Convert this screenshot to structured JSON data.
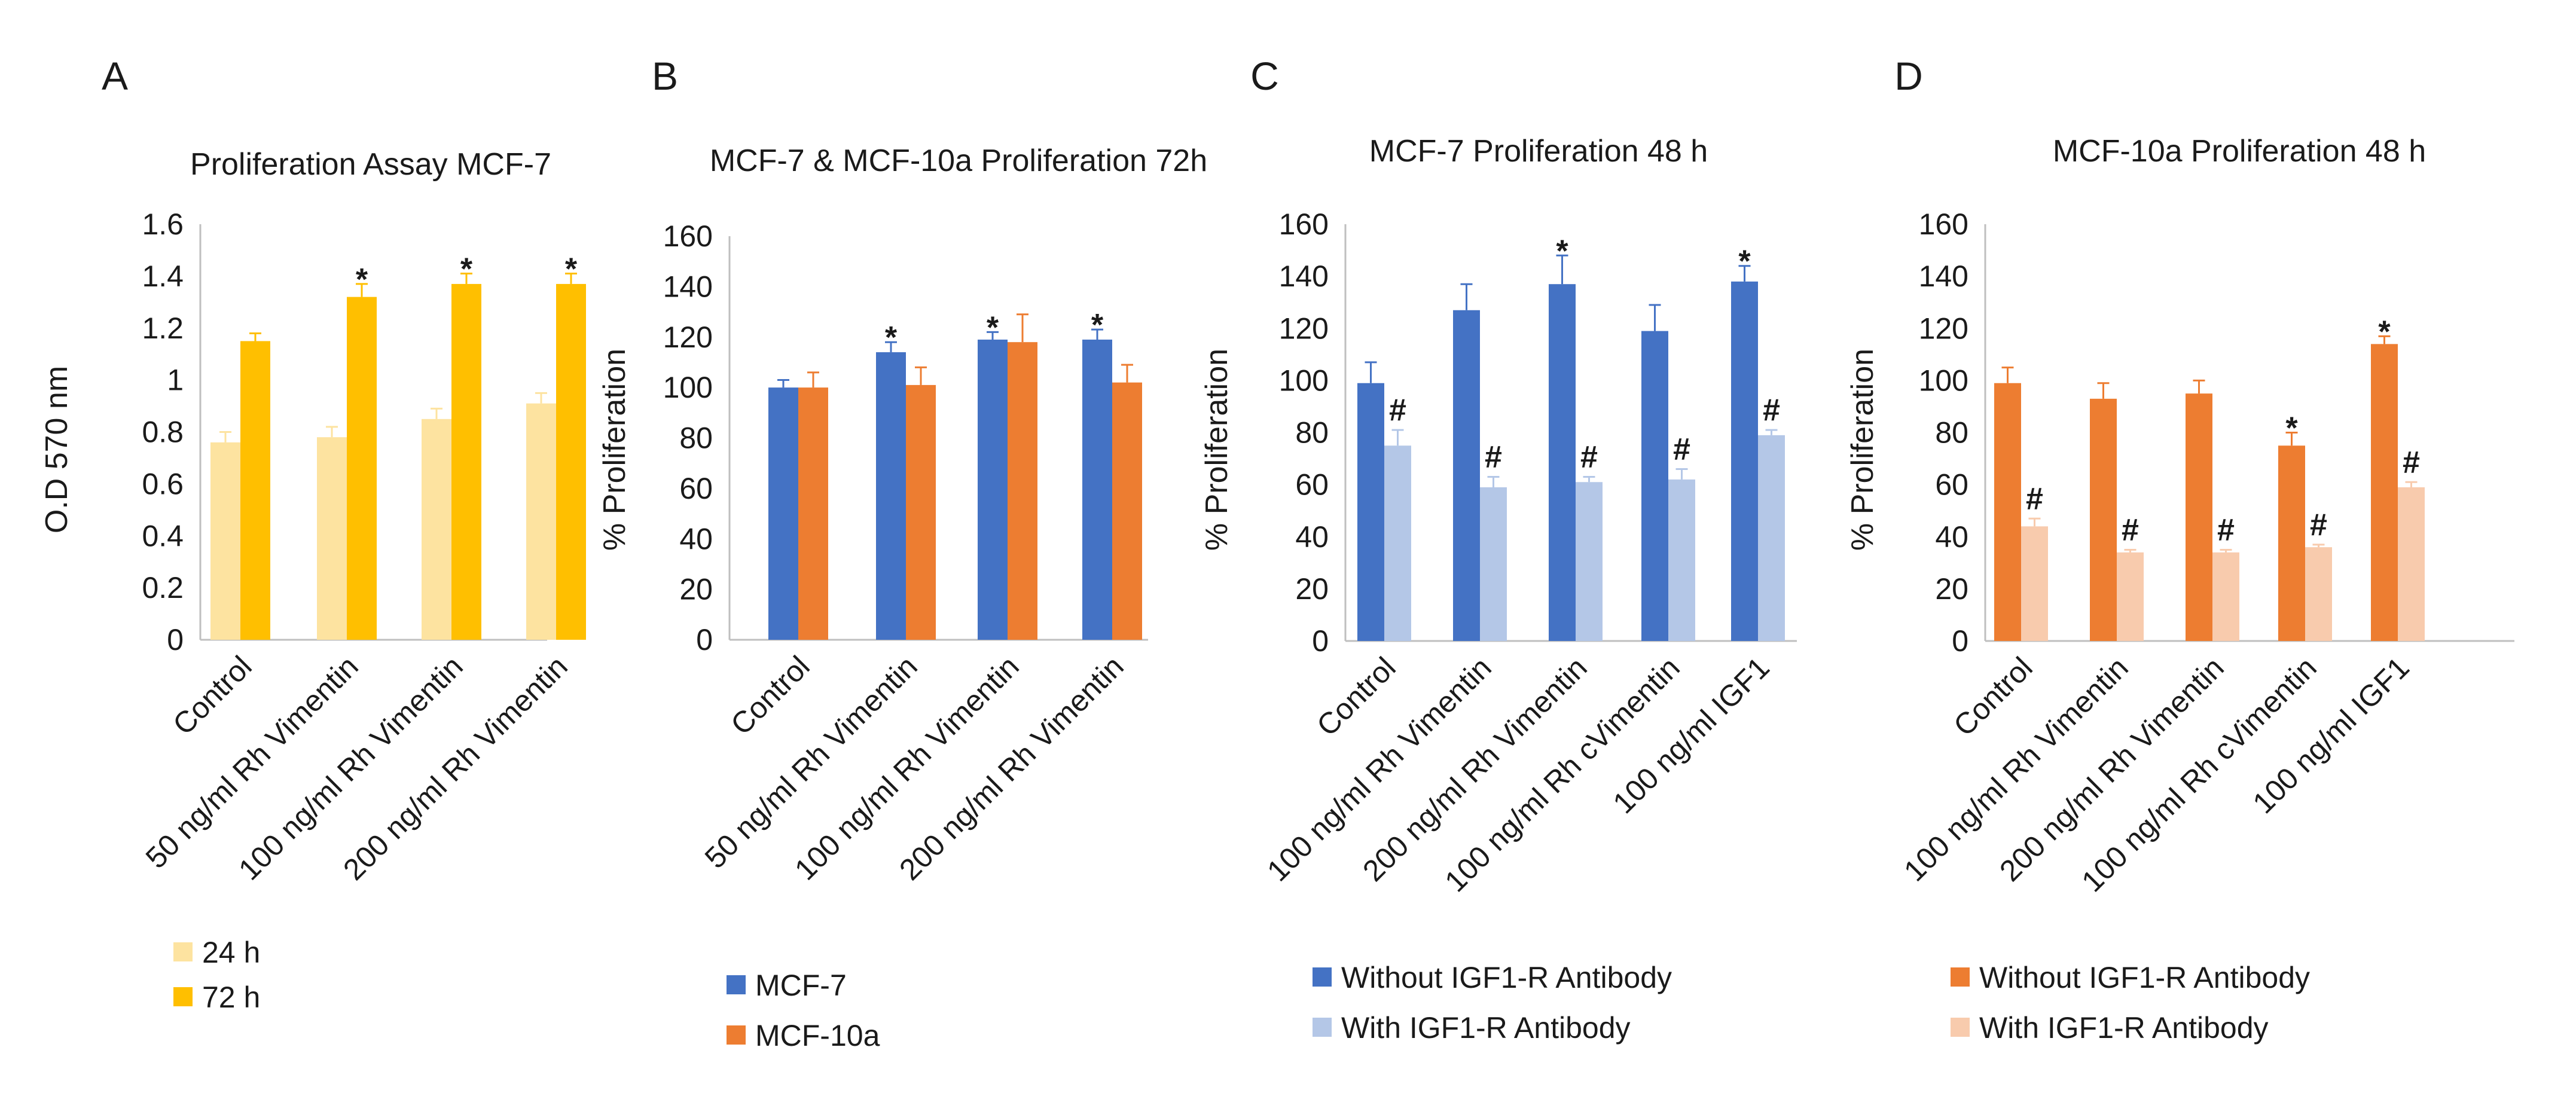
{
  "panels": [
    {
      "letter": "A",
      "chart_data": {
        "type": "bar",
        "title": "Proliferation Assay  MCF-7",
        "xlabel": "",
        "ylabel": "O.D 570 nm",
        "ylim": [
          0,
          1.6
        ],
        "yticks": [
          "0",
          "0.2",
          "0.4",
          "0.6",
          "0.8",
          "1",
          "1.2",
          "1.4",
          "1.6"
        ],
        "categories": [
          "Control",
          "50 ng/ml  Rh Vimentin",
          "100 ng/ml  Rh Vimentin",
          "200 ng/ml  Rh Vimentin"
        ],
        "series": [
          {
            "name": "24 h",
            "color": "#fde3a0",
            "values": [
              0.76,
              0.78,
              0.85,
              0.91
            ],
            "errors": [
              0.04,
              0.04,
              0.04,
              0.04
            ],
            "markers": [
              "",
              "",
              "",
              ""
            ]
          },
          {
            "name": "72 h",
            "color": "#ffbf00",
            "values": [
              1.15,
              1.32,
              1.37,
              1.37
            ],
            "errors": [
              0.03,
              0.05,
              0.04,
              0.04
            ],
            "markers": [
              "",
              "*",
              "*",
              "*"
            ]
          }
        ],
        "grid": false,
        "legend": "bottom-left"
      }
    },
    {
      "letter": "B",
      "chart_data": {
        "type": "bar",
        "title": "MCF-7 & MCF-10a Proliferation 72h",
        "xlabel": "",
        "ylabel": "% Proliferation",
        "ylim": [
          0,
          160
        ],
        "yticks": [
          "0",
          "20",
          "40",
          "60",
          "80",
          "100",
          "120",
          "140",
          "160"
        ],
        "categories": [
          "Control",
          "50 ng/ml  Rh Vimentin",
          "100 ng/ml  Rh Vimentin",
          "200 ng/ml  Rh Vimentin"
        ],
        "series": [
          {
            "name": "MCF-7",
            "color": "#4472c4",
            "values": [
              100,
              114,
              119,
              119
            ],
            "errors": [
              3,
              4,
              3,
              4
            ],
            "markers": [
              "",
              "*",
              "*",
              "*"
            ]
          },
          {
            "name": "MCF-10a",
            "color": "#ed7d31",
            "values": [
              100,
              101,
              118,
              102
            ],
            "errors": [
              6,
              7,
              11,
              7
            ],
            "markers": [
              "",
              "",
              "",
              ""
            ]
          }
        ],
        "grid": false,
        "legend": "bottom-left"
      }
    },
    {
      "letter": "C",
      "chart_data": {
        "type": "bar",
        "title": "MCF-7 Proliferation  48 h",
        "xlabel": "",
        "ylabel": "% Proliferation",
        "ylim": [
          0,
          160
        ],
        "yticks": [
          "0",
          "20",
          "40",
          "60",
          "80",
          "100",
          "120",
          "140",
          "160"
        ],
        "categories": [
          "Control",
          "100 ng/ml  Rh Vimentin",
          "200 ng/ml  Rh Vimentin",
          "100 ng/ml Rh cVimentin",
          "100 ng/ml IGF1"
        ],
        "series": [
          {
            "name": "Without IGF1-R Antibody",
            "color": "#4472c4",
            "values": [
              99,
              127,
              137,
              119,
              138
            ],
            "errors": [
              8,
              10,
              11,
              10,
              6
            ],
            "markers": [
              "",
              "",
              "*",
              "",
              "*"
            ]
          },
          {
            "name": "With IGF1-R Antibody",
            "color": "#b4c7e7",
            "values": [
              75,
              59,
              61,
              62,
              79
            ],
            "errors": [
              6,
              4,
              2,
              4,
              2
            ],
            "markers": [
              "#",
              "#",
              "#",
              "#",
              "#"
            ]
          }
        ],
        "grid": false,
        "legend": "bottom-left"
      }
    },
    {
      "letter": "D",
      "chart_data": {
        "type": "bar",
        "title": "MCF-10a Proliferation 48 h",
        "xlabel": "",
        "ylabel": "% Proliferation",
        "ylim": [
          0,
          160
        ],
        "yticks": [
          "0",
          "20",
          "40",
          "60",
          "80",
          "100",
          "120",
          "140",
          "160"
        ],
        "categories": [
          "Control",
          "100 ng/ml  Rh Vimentin",
          "200 ng/ml  Rh Vimentin",
          "100 ng/ml Rh cVimentin",
          "100 ng/ml IGF1"
        ],
        "series": [
          {
            "name": "Without IGF1-R Antibody",
            "color": "#ed7d31",
            "values": [
              99,
              93,
              95,
              75,
              114
            ],
            "errors": [
              6,
              6,
              5,
              5,
              3
            ],
            "markers": [
              "",
              "",
              "",
              "*",
              "*"
            ]
          },
          {
            "name": "With IGF1-R Antibody",
            "color": "#f8cbad",
            "values": [
              44,
              34,
              34,
              36,
              59
            ],
            "errors": [
              3,
              1,
              1,
              1,
              2
            ],
            "markers": [
              "#",
              "#",
              "#",
              "#",
              "#"
            ]
          }
        ],
        "grid": false,
        "legend": "bottom-left"
      }
    }
  ]
}
